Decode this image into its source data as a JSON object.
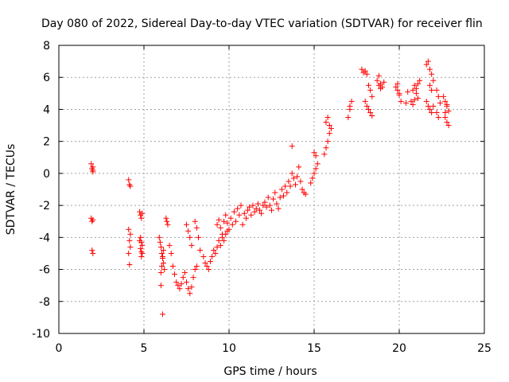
{
  "chart_data": {
    "type": "scatter",
    "title": "Day 080 of 2022, Sidereal Day-to-day VTEC variation (SDTVAR) for receiver flin",
    "xlabel": "GPS time / hours",
    "ylabel": "SDTVAR / TECUs",
    "xlim": [
      0,
      25
    ],
    "ylim": [
      -10,
      8
    ],
    "xticks": [
      0,
      5,
      10,
      15,
      20,
      25
    ],
    "yticks": [
      -10,
      -8,
      -6,
      -4,
      -2,
      0,
      2,
      4,
      6,
      8
    ],
    "grid": true,
    "marker": "+",
    "marker_color": "#ff0000",
    "series": [
      {
        "name": "SDTVAR",
        "x": [
          1.9,
          1.95,
          2.0,
          2.0,
          2.0,
          1.9,
          1.95,
          2.0,
          1.95,
          2.0,
          4.1,
          4.15,
          4.2,
          4.1,
          4.2,
          4.15,
          4.2,
          4.1,
          4.15,
          4.75,
          4.8,
          4.85,
          4.9,
          4.8,
          4.85,
          4.9,
          4.8,
          4.85,
          4.9,
          4.75,
          4.85,
          5.9,
          5.95,
          6.0,
          6.05,
          6.1,
          6.15,
          6.2,
          6.0,
          6.05,
          6.1,
          6.15,
          6.0,
          6.1,
          6.5,
          6.6,
          6.7,
          6.8,
          6.9,
          7.0,
          7.1,
          7.2,
          7.3,
          7.4,
          7.5,
          7.6,
          7.7,
          7.8,
          7.9,
          8.0,
          8.1,
          6.3,
          6.35,
          6.4,
          7.5,
          7.6,
          7.7,
          7.8,
          8.0,
          8.1,
          8.2,
          8.3,
          8.5,
          8.6,
          8.7,
          8.8,
          8.9,
          9.0,
          9.1,
          9.2,
          9.3,
          9.4,
          9.5,
          9.6,
          9.7,
          9.8,
          9.9,
          9.3,
          9.4,
          9.5,
          9.6,
          9.7,
          9.8,
          9.9,
          10.0,
          10.1,
          10.2,
          10.3,
          10.4,
          10.5,
          10.6,
          10.7,
          10.8,
          10.9,
          11.0,
          11.1,
          11.2,
          11.3,
          11.4,
          11.5,
          11.6,
          11.7,
          11.8,
          11.9,
          12.0,
          12.1,
          12.2,
          12.3,
          12.4,
          12.5,
          12.6,
          12.7,
          12.8,
          12.9,
          13.0,
          13.1,
          13.2,
          13.3,
          13.4,
          13.5,
          13.6,
          13.7,
          13.8,
          13.9,
          14.0,
          14.1,
          14.2,
          14.3,
          14.4,
          14.5,
          13.7,
          14.8,
          14.9,
          15.0,
          15.1,
          15.2,
          15.0,
          15.1,
          15.6,
          15.7,
          15.8,
          15.9,
          16.0,
          15.7,
          15.8,
          15.9,
          17.0,
          17.1,
          17.2,
          17.1,
          17.8,
          17.9,
          18.0,
          18.1,
          18.2,
          18.3,
          18.4,
          18.0,
          18.1,
          18.2,
          18.3,
          18.4,
          18.7,
          18.8,
          18.9,
          19.0,
          19.1,
          18.8,
          18.9,
          19.8,
          19.9,
          20.0,
          20.1,
          19.9,
          20.0,
          20.4,
          20.5,
          20.7,
          20.8,
          20.9,
          21.0,
          21.1,
          21.2,
          20.8,
          20.9,
          21.0,
          21.1,
          21.6,
          21.7,
          21.8,
          21.9,
          22.0,
          21.6,
          21.7,
          21.8,
          21.9,
          22.0,
          21.8,
          21.9,
          22.2,
          22.3,
          22.4,
          22.2,
          22.3,
          22.6,
          22.7,
          22.8,
          22.9,
          22.7,
          22.8,
          22.9,
          22.7,
          22.8
        ],
        "y": [
          0.6,
          0.3,
          0.1,
          0.2,
          0.4,
          -2.8,
          -3.0,
          -2.9,
          -4.8,
          -5.0,
          -0.4,
          -0.7,
          -0.8,
          -3.5,
          -3.8,
          -4.2,
          -4.6,
          -5.0,
          -5.7,
          -2.4,
          -2.6,
          -2.8,
          -2.5,
          -4.0,
          -4.3,
          -4.5,
          -4.7,
          -4.9,
          -5.0,
          -4.2,
          -5.2,
          -4.0,
          -4.3,
          -4.6,
          -5.0,
          -5.3,
          -5.6,
          -6.0,
          -6.2,
          -5.8,
          -5.2,
          -4.8,
          -7.0,
          -8.8,
          -4.5,
          -5.0,
          -5.8,
          -6.3,
          -6.8,
          -7.0,
          -7.2,
          -6.9,
          -6.5,
          -6.2,
          -6.8,
          -7.2,
          -7.5,
          -7.1,
          -6.5,
          -6.0,
          -5.8,
          -2.8,
          -3.0,
          -3.2,
          -3.2,
          -3.6,
          -4.0,
          -4.5,
          -3.0,
          -3.4,
          -4.0,
          -4.8,
          -5.2,
          -5.6,
          -5.8,
          -6.0,
          -5.5,
          -5.2,
          -4.8,
          -5.0,
          -4.6,
          -4.2,
          -4.5,
          -4.0,
          -4.2,
          -3.8,
          -3.6,
          -3.2,
          -2.9,
          -3.4,
          -3.8,
          -3.0,
          -2.6,
          -3.1,
          -3.5,
          -2.8,
          -3.2,
          -2.4,
          -3.0,
          -2.2,
          -2.6,
          -2.0,
          -3.2,
          -2.5,
          -2.8,
          -2.3,
          -2.1,
          -2.6,
          -2.0,
          -2.4,
          -2.2,
          -1.9,
          -2.3,
          -2.5,
          -2.0,
          -1.8,
          -2.1,
          -1.5,
          -2.0,
          -2.3,
          -1.6,
          -1.2,
          -1.9,
          -2.2,
          -1.5,
          -1.0,
          -1.4,
          -0.8,
          -1.2,
          -0.5,
          -0.8,
          0.0,
          -0.3,
          -0.7,
          -0.2,
          0.4,
          -0.5,
          -1.0,
          -1.2,
          -1.3,
          1.7,
          -0.6,
          -0.3,
          0.0,
          0.3,
          0.6,
          1.3,
          1.1,
          1.2,
          1.6,
          2.0,
          2.5,
          2.8,
          3.2,
          3.5,
          3.0,
          3.5,
          4.0,
          4.5,
          4.2,
          6.5,
          6.3,
          6.4,
          6.2,
          5.5,
          5.2,
          4.8,
          4.5,
          4.2,
          4.0,
          3.8,
          3.6,
          5.8,
          5.5,
          5.6,
          5.4,
          5.7,
          6.1,
          5.3,
          5.4,
          5.2,
          4.9,
          4.5,
          5.6,
          5.0,
          4.4,
          5.1,
          4.5,
          5.2,
          5.5,
          5.0,
          4.7,
          5.8,
          4.3,
          4.6,
          5.3,
          5.6,
          6.8,
          7.0,
          6.5,
          6.2,
          5.8,
          4.5,
          4.2,
          4.0,
          3.8,
          4.2,
          5.5,
          5.2,
          5.2,
          4.8,
          4.4,
          3.8,
          3.5,
          4.8,
          4.5,
          4.2,
          3.9,
          3.5,
          3.2,
          3.0,
          3.8,
          4.3
        ]
      }
    ]
  }
}
